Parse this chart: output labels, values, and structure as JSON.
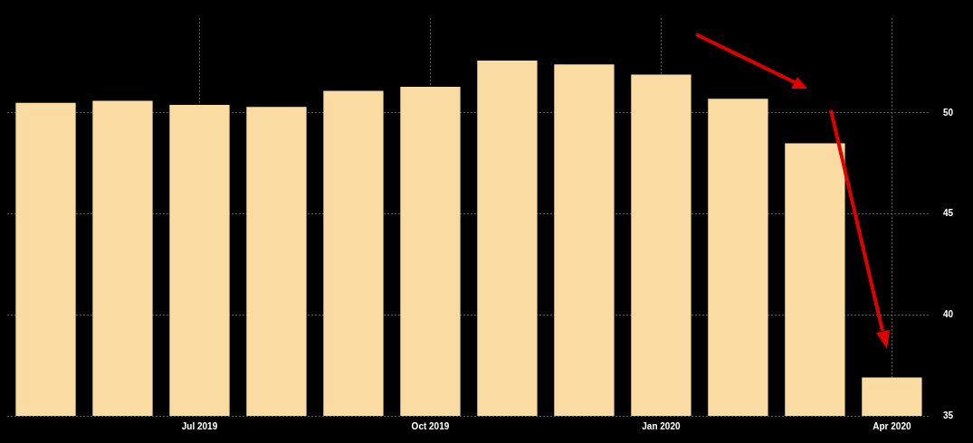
{
  "chart_data": {
    "type": "bar",
    "categories": [
      null,
      null,
      "Jul 2019",
      null,
      null,
      "Oct 2019",
      null,
      null,
      "Jan 2020",
      null,
      null,
      "Apr 2020"
    ],
    "values": [
      50.5,
      50.6,
      50.4,
      50.3,
      51.1,
      51.3,
      52.6,
      52.4,
      51.9,
      50.7,
      48.5,
      36.9
    ],
    "color": "#fadca3",
    "ylim": [
      35,
      54.7
    ],
    "yticks": [
      35,
      40,
      45,
      50
    ],
    "grid": true
  }
}
